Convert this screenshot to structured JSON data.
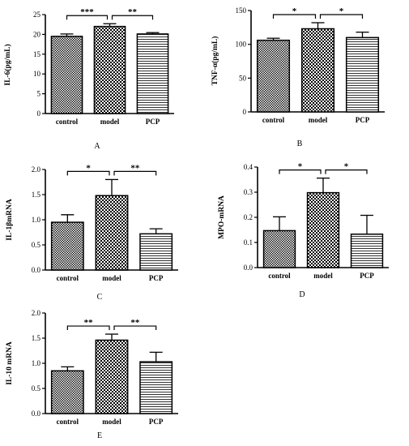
{
  "chart_data": [
    {
      "type": "bar",
      "panel": "A",
      "ylabel": "IL-6(pg/mL)",
      "categories": [
        "control",
        "model",
        "PCP"
      ],
      "values": [
        19.5,
        22.0,
        20.1
      ],
      "errors": [
        0.6,
        0.7,
        0.35
      ],
      "ylim": [
        0,
        25
      ],
      "yticks": [
        "0",
        "5",
        "10",
        "15",
        "20",
        "25"
      ],
      "patterns": [
        "dense-check",
        "check",
        "horizontal-lines"
      ],
      "comparisons": [
        {
          "from": 0,
          "to": 1,
          "label": "***"
        },
        {
          "from": 1,
          "to": 2,
          "label": "**"
        }
      ]
    },
    {
      "type": "bar",
      "panel": "B",
      "ylabel": "TNF-α(pg/mL)",
      "categories": [
        "control",
        "model",
        "PCP"
      ],
      "values": [
        106,
        123,
        110
      ],
      "errors": [
        3,
        9,
        8
      ],
      "ylim": [
        0,
        150
      ],
      "yticks": [
        "0",
        "50",
        "100",
        "150"
      ],
      "patterns": [
        "dense-check",
        "check",
        "horizontal-lines"
      ],
      "comparisons": [
        {
          "from": 0,
          "to": 1,
          "label": "*"
        },
        {
          "from": 1,
          "to": 2,
          "label": "*"
        }
      ]
    },
    {
      "type": "bar",
      "panel": "C",
      "ylabel": "IL-1βmRNA",
      "categories": [
        "control",
        "model",
        "PCP"
      ],
      "values": [
        0.95,
        1.48,
        0.72
      ],
      "errors": [
        0.15,
        0.32,
        0.1
      ],
      "ylim": [
        0,
        2.0
      ],
      "yticks": [
        "0.0",
        "0.5",
        "1.0",
        "1.5",
        "2.0"
      ],
      "patterns": [
        "dense-check",
        "check",
        "horizontal-lines"
      ],
      "comparisons": [
        {
          "from": 0,
          "to": 1,
          "label": "*"
        },
        {
          "from": 1,
          "to": 2,
          "label": "**"
        }
      ]
    },
    {
      "type": "bar",
      "panel": "D",
      "ylabel": "MPO-mRNA",
      "categories": [
        "control",
        "model",
        "PCP"
      ],
      "values": [
        0.147,
        0.298,
        0.133
      ],
      "errors": [
        0.055,
        0.058,
        0.075
      ],
      "ylim": [
        0,
        0.4
      ],
      "yticks": [
        "0.0",
        "0.1",
        "0.2",
        "0.3",
        "0.4"
      ],
      "patterns": [
        "dense-check",
        "check",
        "horizontal-lines"
      ],
      "comparisons": [
        {
          "from": 0,
          "to": 1,
          "label": "*"
        },
        {
          "from": 1,
          "to": 2,
          "label": "*"
        }
      ]
    },
    {
      "type": "bar",
      "panel": "E",
      "ylabel": "IL-10 mRNA",
      "categories": [
        "control",
        "model",
        "PCP"
      ],
      "values": [
        0.85,
        1.46,
        1.03
      ],
      "errors": [
        0.08,
        0.12,
        0.19
      ],
      "ylim": [
        0,
        2.0
      ],
      "yticks": [
        "0.0",
        "0.5",
        "1.0",
        "1.5",
        "2.0"
      ],
      "patterns": [
        "dense-check",
        "check",
        "horizontal-lines"
      ],
      "comparisons": [
        {
          "from": 0,
          "to": 1,
          "label": "**"
        },
        {
          "from": 1,
          "to": 2,
          "label": "**"
        }
      ]
    }
  ]
}
